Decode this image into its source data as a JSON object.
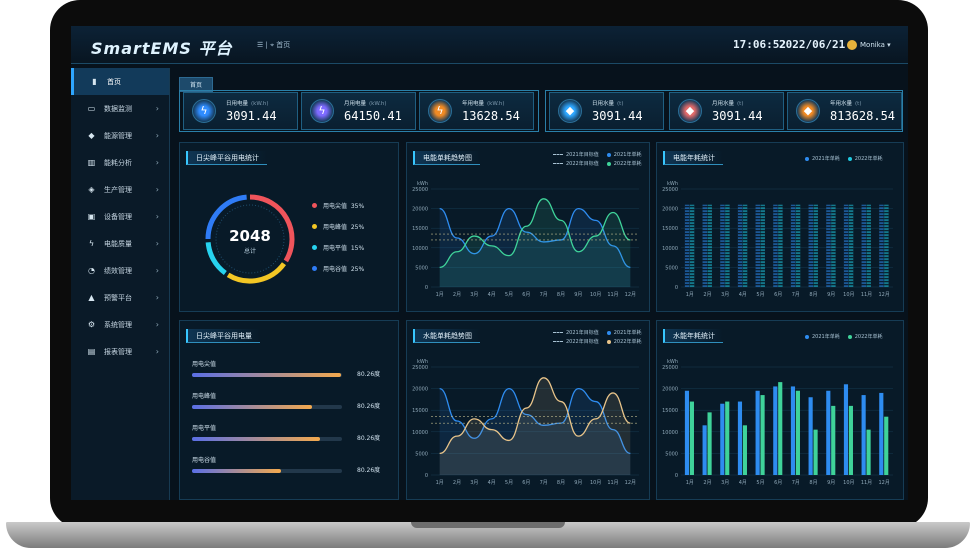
{
  "app": {
    "logo": "SmartEMS 平台",
    "breadcrumb": "首页",
    "time": "17:06:52",
    "date": "2022/06/21",
    "user": "Monika"
  },
  "sidebar": {
    "items": [
      {
        "label": "首页",
        "icon": "bar-chart-icon",
        "active": true
      },
      {
        "label": "数据监测",
        "icon": "monitor-icon"
      },
      {
        "label": "能源管理",
        "icon": "energy-icon"
      },
      {
        "label": "能耗分析",
        "icon": "analysis-icon"
      },
      {
        "label": "生产管理",
        "icon": "shield-icon"
      },
      {
        "label": "设备管理",
        "icon": "device-icon"
      },
      {
        "label": "电能质量",
        "icon": "power-icon"
      },
      {
        "label": "绩效管理",
        "icon": "pie-icon"
      },
      {
        "label": "预警平台",
        "icon": "warning-icon"
      },
      {
        "label": "系统管理",
        "icon": "settings-icon"
      },
      {
        "label": "报表管理",
        "icon": "report-icon"
      }
    ]
  },
  "tab": {
    "label": "首页"
  },
  "kpis": [
    {
      "label": "日用电量",
      "unit": "(kW.h)",
      "value": "3091.44",
      "color": "#2f8cff"
    },
    {
      "label": "月用电量",
      "unit": "(kW.h)",
      "value": "64150.41",
      "color": "#7e6bff"
    },
    {
      "label": "年用电量",
      "unit": "(kW.h)",
      "value": "13628.54",
      "color": "#f08a24"
    },
    {
      "label": "日用水量",
      "unit": "(t)",
      "value": "3091.44",
      "color": "#2fa7ff"
    },
    {
      "label": "月用水量",
      "unit": "(t)",
      "value": "3091.44",
      "color": "#e06a6a"
    },
    {
      "label": "年用水量",
      "unit": "(t)",
      "value": "813628.54",
      "color": "#f08a24"
    }
  ],
  "panels": {
    "peak_ring": {
      "title": "日尖峰平谷用电统计",
      "center_value": "2048",
      "center_label": "总计",
      "legend": [
        {
          "label": "用电尖值",
          "pct": "35%",
          "color": "#f0545b"
        },
        {
          "label": "用电峰值",
          "pct": "25%",
          "color": "#f3c624"
        },
        {
          "label": "用电平值",
          "pct": "15%",
          "color": "#27d3ef"
        },
        {
          "label": "用电谷值",
          "pct": "25%",
          "color": "#2f7cf6"
        }
      ]
    },
    "peak_bars": {
      "title": "日尖峰平谷用电量",
      "rows": [
        {
          "label": "用电尖值",
          "value": "80.26度",
          "fraction": 0.99
        },
        {
          "label": "用电峰值",
          "value": "80.26度",
          "fraction": 0.8
        },
        {
          "label": "用电平值",
          "value": "80.26度",
          "fraction": 0.85
        },
        {
          "label": "用电谷值",
          "value": "80.26度",
          "fraction": 0.59
        }
      ]
    },
    "elec_trend": {
      "title": "电能单耗趋势图",
      "legend": [
        "2021年目标值",
        "2021年单耗",
        "2022年目标值",
        "2022年单耗"
      ]
    },
    "elec_year": {
      "title": "电能年耗统计",
      "legend": [
        "2021年单耗",
        "2022年单耗"
      ]
    },
    "water_trend": {
      "title": "水能单耗趋势图",
      "legend": [
        "2021年目标值",
        "2021年单耗",
        "2022年目标值",
        "2022年单耗"
      ]
    },
    "water_year": {
      "title": "水能年耗统计",
      "legend": [
        "2021年单耗",
        "2022年单耗"
      ]
    }
  },
  "chart_data": [
    {
      "type": "line",
      "id": "elec_trend",
      "ylabel": "kWh",
      "ylim": [
        0,
        25000
      ],
      "yticks": [
        0,
        5000,
        10000,
        15000,
        20000,
        25000
      ],
      "categories": [
        "1月",
        "2月",
        "3月",
        "4月",
        "5月",
        "6月",
        "7月",
        "8月",
        "9月",
        "10月",
        "11月",
        "12月"
      ],
      "series": [
        {
          "name": "2021年单耗",
          "color": "#2e8cf0",
          "values": [
            20000,
            12500,
            8500,
            13000,
            20000,
            14000,
            11500,
            12000,
            20000,
            17000,
            10500,
            5000
          ]
        },
        {
          "name": "2022年单耗",
          "color": "#3fd39a",
          "values": [
            5000,
            9000,
            13000,
            10500,
            8000,
            15500,
            22500,
            17000,
            9000,
            13000,
            19000,
            12000
          ]
        },
        {
          "name": "2021年目标值",
          "values": [
            13500,
            13500,
            13500,
            13500,
            13500,
            13500,
            13500,
            13500,
            13500,
            13500,
            13500,
            13500
          ]
        },
        {
          "name": "2022年目标值",
          "values": [
            12000,
            12000,
            12000,
            12000,
            12000,
            12000,
            12000,
            12000,
            12000,
            12000,
            12000,
            12000
          ]
        }
      ]
    },
    {
      "type": "bar",
      "id": "elec_year",
      "ylabel": "kWh",
      "ylim": [
        0,
        25000
      ],
      "yticks": [
        0,
        5000,
        10000,
        15000,
        20000,
        25000
      ],
      "categories": [
        "1月",
        "2月",
        "3月",
        "4月",
        "5月",
        "6月",
        "7月",
        "8月",
        "9月",
        "10月",
        "11月",
        "12月"
      ],
      "series": [
        {
          "name": "2021年单耗",
          "color": "#2e8cf0",
          "values": [
            21000,
            21000,
            21000,
            21000,
            21000,
            21000,
            21000,
            21000,
            21000,
            21000,
            21000,
            21000
          ]
        },
        {
          "name": "2022年单耗",
          "color": "#1fc9e0",
          "values": [
            21000,
            21000,
            21000,
            21000,
            21000,
            21000,
            21000,
            21000,
            21000,
            21000,
            21000,
            21000
          ]
        }
      ]
    },
    {
      "type": "line",
      "id": "water_trend",
      "ylabel": "kWh",
      "ylim": [
        0,
        25000
      ],
      "yticks": [
        0,
        5000,
        10000,
        15000,
        20000,
        25000
      ],
      "categories": [
        "1月",
        "2月",
        "3月",
        "4月",
        "5月",
        "6月",
        "7月",
        "8月",
        "9月",
        "10月",
        "11月",
        "12月"
      ],
      "series": [
        {
          "name": "2021年单耗",
          "color": "#2e8cf0",
          "values": [
            20000,
            12500,
            8500,
            13000,
            20000,
            14000,
            11500,
            12000,
            20000,
            17000,
            10500,
            5000
          ]
        },
        {
          "name": "2022年单耗",
          "color": "#e8c48a",
          "values": [
            5000,
            9000,
            13000,
            10500,
            8000,
            15500,
            22500,
            17000,
            9000,
            13000,
            19000,
            12000
          ]
        },
        {
          "name": "2021年目标值",
          "values": [
            13500,
            13500,
            13500,
            13500,
            13500,
            13500,
            13500,
            13500,
            13500,
            13500,
            13500,
            13500
          ]
        },
        {
          "name": "2022年目标值",
          "values": [
            12000,
            12000,
            12000,
            12000,
            12000,
            12000,
            12000,
            12000,
            12000,
            12000,
            12000,
            12000
          ]
        }
      ]
    },
    {
      "type": "bar",
      "id": "water_year",
      "ylabel": "kWh",
      "ylim": [
        0,
        25000
      ],
      "yticks": [
        0,
        5000,
        10000,
        15000,
        20000,
        25000
      ],
      "categories": [
        "1月",
        "2月",
        "3月",
        "4月",
        "5月",
        "6月",
        "7月",
        "8月",
        "9月",
        "10月",
        "11月",
        "12月"
      ],
      "series": [
        {
          "name": "2021年单耗",
          "color": "#2e8cf0",
          "values": [
            19500,
            11500,
            16500,
            17000,
            19500,
            20500,
            20500,
            18000,
            19500,
            21000,
            18500,
            19000
          ]
        },
        {
          "name": "2022年单耗",
          "color": "#3fd39a",
          "values": [
            17000,
            14500,
            17000,
            11500,
            18500,
            21500,
            19500,
            10500,
            16000,
            16000,
            10500,
            13500
          ]
        }
      ]
    }
  ]
}
